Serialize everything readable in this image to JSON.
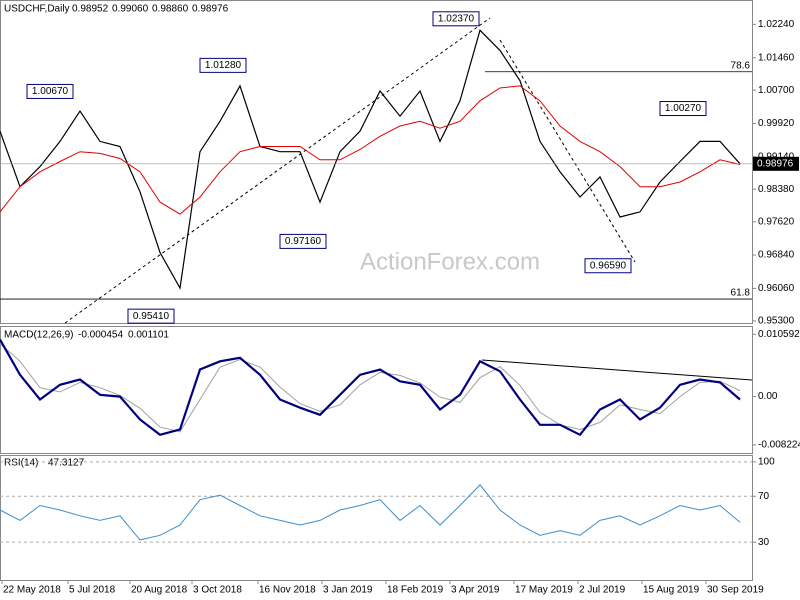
{
  "chart_data": [
    {
      "type": "line",
      "title": "USDCHF,Daily",
      "ohlc": [
        "0.98952",
        "0.99060",
        "0.98860",
        "0.98976"
      ],
      "watermark": "ActionForex.com",
      "x": [
        0,
        10,
        20,
        30,
        40,
        50,
        60,
        70,
        80,
        90,
        100,
        110,
        120,
        130,
        140,
        150,
        160,
        170,
        180,
        190,
        200,
        210,
        220,
        230,
        240,
        250,
        260,
        270,
        280,
        290,
        300,
        310,
        320,
        330,
        340,
        350,
        360,
        370
      ],
      "xlim": [
        0,
        376
      ],
      "ylim": [
        0.9525,
        1.0281
      ],
      "yticks": [
        {
          "value": 1.0224,
          "label": "1.02240"
        },
        {
          "value": 1.0146,
          "label": "1.01460"
        },
        {
          "value": 1.007,
          "label": "1.00700"
        },
        {
          "value": 0.9992,
          "label": "0.99920"
        },
        {
          "value": 0.9914,
          "label": "0.99140"
        },
        {
          "value": 0.9838,
          "label": "0.98380"
        },
        {
          "value": 0.9762,
          "label": "0.97620"
        },
        {
          "value": 0.9684,
          "label": "0.96840"
        },
        {
          "value": 0.9606,
          "label": "0.96060"
        },
        {
          "value": 0.953,
          "label": "0.95300"
        }
      ],
      "series": [
        {
          "name": "Close",
          "color": "#000000",
          "width": 1.2,
          "values": [
            0.9974,
            0.9844,
            0.9891,
            0.995,
            1.0021,
            0.995,
            0.9938,
            0.9832,
            0.969,
            0.9607,
            0.9926,
            0.9997,
            1.008,
            0.9938,
            0.9926,
            0.9926,
            0.9808,
            0.9926,
            0.9974,
            1.0068,
            1.0009,
            1.0068,
            0.995,
            1.0045,
            1.021,
            1.0163,
            1.0092,
            0.995,
            0.9879,
            0.982,
            0.9867,
            0.9773,
            0.9785,
            0.9855,
            0.9903,
            0.995,
            0.995,
            0.98976
          ]
        },
        {
          "name": "MA",
          "color": "#e00000",
          "width": 1,
          "values": [
            0.9785,
            0.9844,
            0.9879,
            0.9903,
            0.9926,
            0.9922,
            0.991,
            0.9879,
            0.9808,
            0.978,
            0.982,
            0.9879,
            0.9926,
            0.9938,
            0.9938,
            0.9938,
            0.9907,
            0.9907,
            0.9931,
            0.9962,
            0.9986,
            0.9997,
            0.9981,
            0.9997,
            1.0045,
            1.0075,
            1.008,
            1.0045,
            0.9986,
            0.995,
            0.9926,
            0.9891,
            0.9844,
            0.9844,
            0.9855,
            0.9879,
            0.9907,
            0.9896
          ]
        }
      ],
      "annotations": [
        {
          "label": "1.00670",
          "value": 1.0067
        },
        {
          "label": "1.01280",
          "value": 1.0128
        },
        {
          "label": "1.02370",
          "value": 1.0237
        },
        {
          "label": "0.97160",
          "value": 0.9716
        },
        {
          "label": "0.95410",
          "value": 0.9541
        },
        {
          "label": "0.96590",
          "value": 0.9659
        },
        {
          "label": "1.00270",
          "value": 1.0027
        }
      ],
      "fib_levels": [
        {
          "label": "78.6",
          "price": 1.0113
        },
        {
          "label": "61.8",
          "price": 0.9581
        }
      ]
    },
    {
      "type": "line",
      "title": "MACD(12,26,9)",
      "readings": [
        -0.000454,
        0.001101
      ],
      "x": [
        0,
        10,
        20,
        30,
        40,
        50,
        60,
        70,
        80,
        90,
        100,
        110,
        120,
        130,
        140,
        150,
        160,
        170,
        180,
        190,
        200,
        210,
        220,
        230,
        240,
        250,
        260,
        270,
        280,
        290,
        300,
        310,
        320,
        330,
        340,
        350,
        360,
        370
      ],
      "xlim": [
        0,
        376
      ],
      "ylim": [
        -0.0096,
        0.012
      ],
      "yticks": [
        0.010592,
        {
          "value": 0,
          "label": "0.00"
        },
        -0.008224
      ],
      "series": [
        {
          "name": "Signal",
          "color": "#a0a0a0",
          "width": 1,
          "values": [
            0.009,
            0.006,
            0.0015,
            0.0008,
            0.0024,
            0.0015,
            0.0002,
            -0.002,
            -0.0052,
            -0.006,
            -0.0005,
            0.005,
            0.0063,
            0.005,
            0.0016,
            -0.0012,
            -0.0025,
            -0.0014,
            0.002,
            0.0041,
            0.0036,
            0.0023,
            -0.0001,
            -0.001,
            0.0032,
            0.0051,
            0.0019,
            -0.0027,
            -0.0048,
            -0.0056,
            -0.0044,
            -0.0014,
            -0.0022,
            -0.0029,
            0.0,
            0.0024,
            0.0026,
            0.001
          ]
        },
        {
          "name": "MACD",
          "color": "#000080",
          "width": 2.2,
          "values": [
            0.0097,
            0.0037,
            -0.0005,
            0.002,
            0.0029,
            0.0003,
            0,
            -0.0039,
            -0.0065,
            -0.0056,
            0.0046,
            0.006,
            0.0066,
            0.0037,
            -0.0005,
            -0.0019,
            -0.0031,
            0.0003,
            0.0037,
            0.0046,
            0.0026,
            0.002,
            -0.0022,
            0.0003,
            0.006,
            0.0043,
            -0.0005,
            -0.0048,
            -0.0048,
            -0.0065,
            -0.0022,
            -0.0005,
            -0.0039,
            -0.0019,
            0.002,
            0.0029,
            0.0024,
            -0.0005
          ]
        }
      ]
    },
    {
      "type": "line",
      "title": "RSI(14)",
      "x": [
        0,
        10,
        20,
        30,
        40,
        50,
        60,
        70,
        80,
        90,
        100,
        110,
        120,
        130,
        140,
        150,
        160,
        170,
        180,
        190,
        200,
        210,
        220,
        230,
        240,
        250,
        260,
        270,
        280,
        290,
        300,
        310,
        320,
        330,
        340,
        350,
        360,
        370
      ],
      "xlim": [
        0,
        376
      ],
      "ylim": [
        -3,
        106
      ],
      "yticks": [
        100,
        70,
        30
      ],
      "series": [
        {
          "name": "RSI",
          "color": "#3c8dcc",
          "width": 1,
          "values": [
            58,
            49,
            62,
            58,
            53,
            49,
            53,
            32,
            36,
            45,
            67,
            71,
            62,
            53,
            49,
            45,
            49,
            58,
            62,
            67,
            49,
            62,
            45,
            62,
            80,
            58,
            45,
            36,
            40,
            36,
            49,
            53,
            45,
            53,
            62,
            58,
            62,
            47.3127
          ]
        }
      ],
      "xticks": [
        {
          "value": 1,
          "label": "22 May 2018"
        },
        {
          "value": 34,
          "label": "5 Jul 2018"
        },
        {
          "value": 65,
          "label": "20 Aug 2018"
        },
        {
          "value": 96,
          "label": "3 Oct 2018"
        },
        {
          "value": 129,
          "label": "16 Nov 2018"
        },
        {
          "value": 161,
          "label": "3 Jan 2019"
        },
        {
          "value": 193,
          "label": "18 Feb 2019"
        },
        {
          "value": 225,
          "label": "3 Apr 2019"
        },
        {
          "value": 257,
          "label": "17 May 2019"
        },
        {
          "value": 289,
          "label": "2 Jul 2019"
        },
        {
          "value": 321,
          "label": "15 Aug 2019"
        },
        {
          "value": 353,
          "label": "30 Sep 2019"
        }
      ]
    }
  ]
}
